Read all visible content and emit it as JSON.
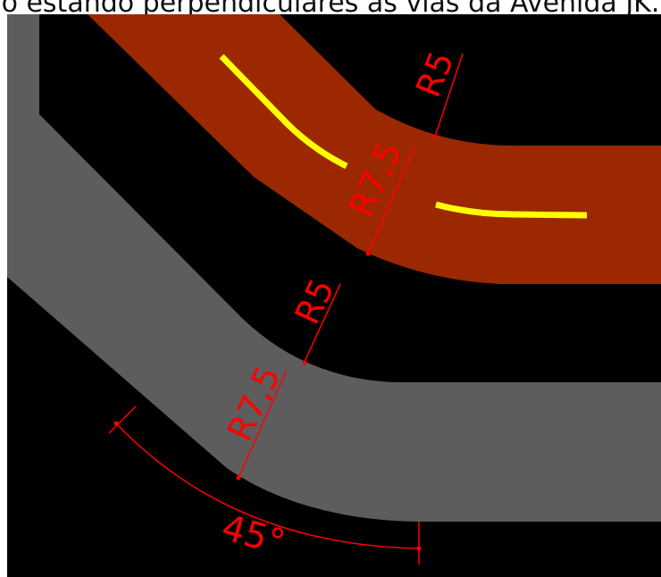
{
  "caption": "o estando perpendiculares às vias da Avenida JK.",
  "labels": {
    "upper_inner_radius": "R5",
    "upper_outer_radius": "R7,5",
    "lower_inner_radius": "R5",
    "lower_outer_radius": "R7,5",
    "angle": "45°"
  },
  "colors": {
    "background": "#000000",
    "upper_road": "#9b2800",
    "lower_road": "#5d5d5d",
    "lane_marking": "#ffff00",
    "dimension": "#ff0000"
  }
}
